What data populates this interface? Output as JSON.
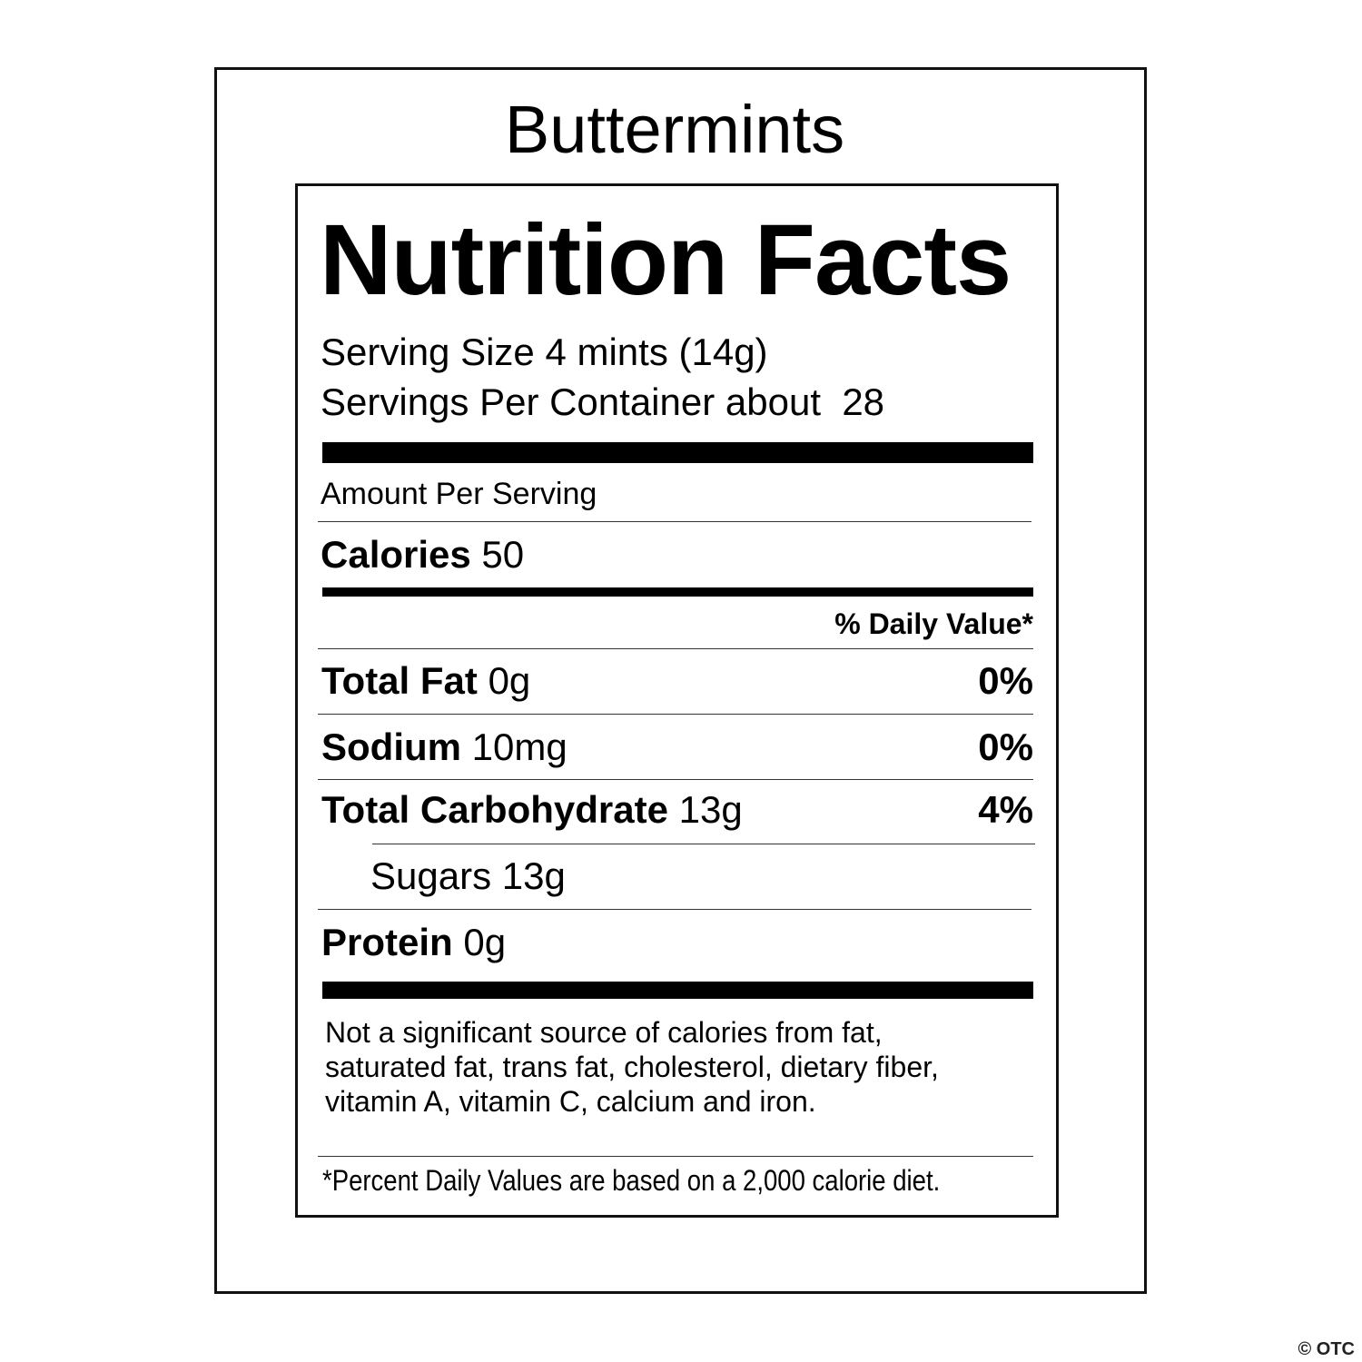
{
  "product_name": "Buttermints",
  "label": {
    "title": "Nutrition Facts",
    "serving_size": "Serving Size 4 mints (14g)",
    "servings_per_container": "Servings Per Container about  28",
    "amount_per_serving": "Amount Per Serving",
    "calories": {
      "label": "Calories",
      "value": "50"
    },
    "daily_value_header": "% Daily Value*",
    "nutrients": [
      {
        "label": "Total Fat",
        "amount": "0g",
        "dv": "0%"
      },
      {
        "label": "Sodium",
        "amount": "10mg",
        "dv": "0%"
      },
      {
        "label": "Total Carbohydrate",
        "amount": "13g",
        "dv": "4%"
      },
      {
        "label": "Sugars",
        "amount": "13g"
      },
      {
        "label": "Protein",
        "amount": "0g"
      }
    ],
    "disclaimer": [
      "Not a significant source of calories from fat,",
      "saturated fat, trans fat, cholesterol, dietary fiber,",
      "vitamin A, vitamin C, calcium and iron."
    ],
    "footnote": "*Percent Daily Values are based on a 2,000 calorie diet."
  },
  "watermark": "© OTC"
}
